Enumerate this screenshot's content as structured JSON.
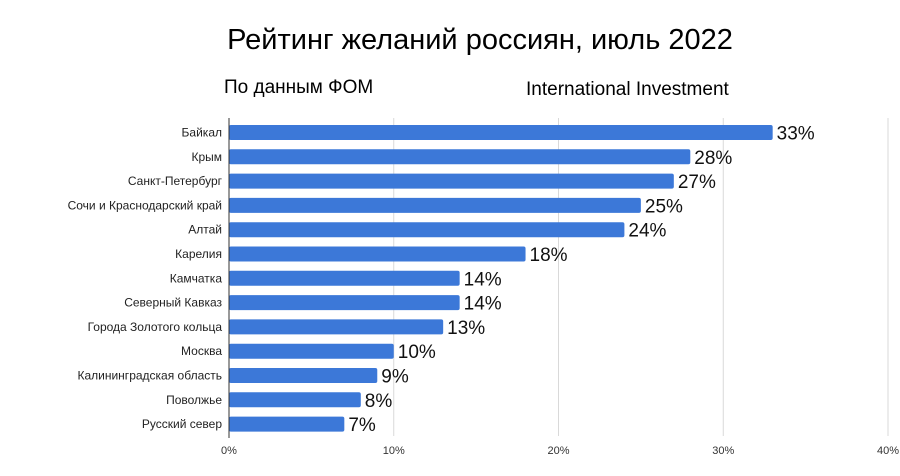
{
  "header": {
    "title": "Рейтинг желаний россиян, июль 2022",
    "subtitle_left": "По данным ФОМ",
    "subtitle_right": "International Investment"
  },
  "chart_data": {
    "type": "bar",
    "orientation": "horizontal",
    "title": "Рейтинг желаний россиян, июль 2022",
    "xlabel": "",
    "ylabel": "",
    "categories": [
      "Байкал",
      "Крым",
      "Санкт-Петербург",
      "Сочи и Краснодарский край",
      "Алтай",
      "Карелия",
      "Камчатка",
      "Северный Кавказ",
      "Города Золотого кольца",
      "Москва",
      "Калининградская область",
      "Поволжье",
      "Русский север"
    ],
    "values": [
      33,
      28,
      27,
      25,
      24,
      18,
      14,
      14,
      13,
      10,
      9,
      8,
      7
    ],
    "value_labels": [
      "33%",
      "28%",
      "27%",
      "25%",
      "24%",
      "18%",
      "14%",
      "14%",
      "13%",
      "10%",
      "9%",
      "8%",
      "7%"
    ],
    "xlim": [
      0,
      40
    ],
    "xticks": [
      0,
      10,
      20,
      30,
      40
    ],
    "xtick_labels": [
      "0%",
      "10%",
      "20%",
      "30%",
      "40%"
    ],
    "grid": true,
    "bar_color": "#3c78d8"
  }
}
